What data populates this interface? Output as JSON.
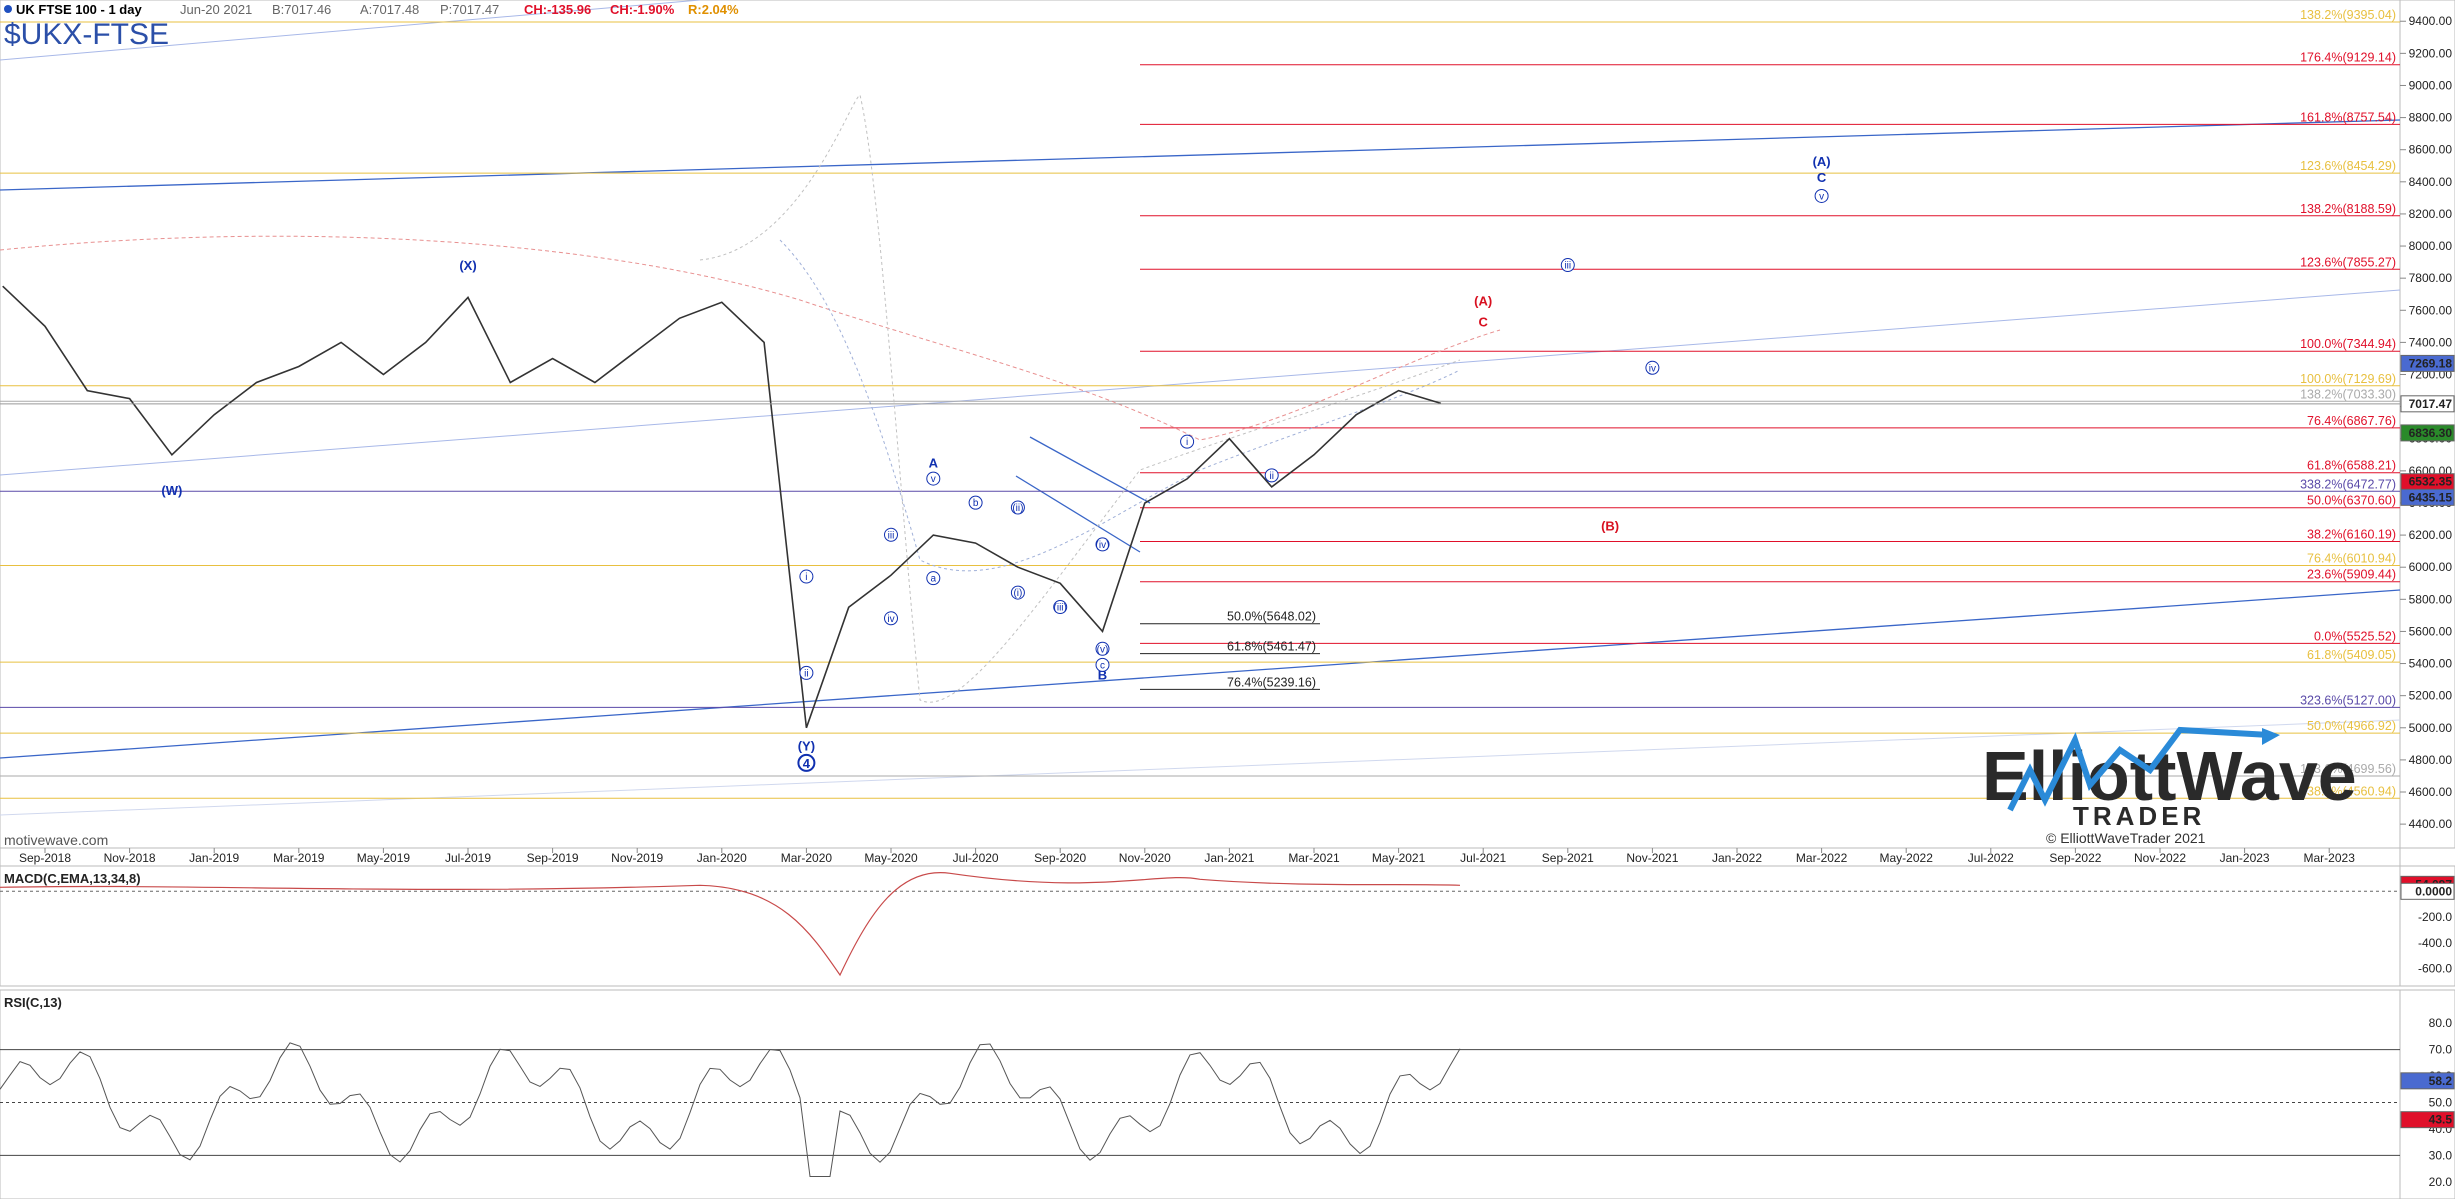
{
  "header": {
    "symbol_line": "UK FTSE 100 - 1 day",
    "date": "Jun-20 2021",
    "bid": "B:7017.46",
    "ask": "A:7017.48",
    "price": "P:7017.47",
    "change": "CH:-135.96",
    "change_pct": "CH:-1.90%",
    "range": "R:2.04%",
    "ticker": "$UKX-FTSE",
    "watermark": "motivewave.com",
    "copyright": "© ElliottWaveTrader 2021",
    "logo_word1": "ElliottWave",
    "logo_word2": "TRADER"
  },
  "colors": {
    "up_red": "#e0102a",
    "gold": "#e0b000",
    "blue_line": "#3a66c8",
    "wave_blue": "#1030b0",
    "wave_red": "#d81020",
    "price": "#333333",
    "macd_hist": "#8fb8de",
    "rsi_blue": "#6a8ad8"
  },
  "chart_data": {
    "type": "line",
    "main": {
      "y_ticks": [
        9400,
        9200,
        9000,
        8800,
        8600,
        8400,
        8200,
        8000,
        7800,
        7600,
        7400,
        7200,
        7000,
        6800,
        6600,
        6400,
        6200,
        6000,
        5800,
        5600,
        5400,
        5200,
        5000,
        4800,
        4600,
        4400
      ],
      "ylim": [
        4270,
        9470
      ],
      "x_ticks": [
        "Sep-2018",
        "Nov-2018",
        "Jan-2019",
        "Mar-2019",
        "May-2019",
        "Jul-2019",
        "Sep-2019",
        "Nov-2019",
        "Jan-2020",
        "Mar-2020",
        "May-2020",
        "Jul-2020",
        "Sep-2020",
        "Nov-2020",
        "Jan-2021",
        "Mar-2021",
        "May-2021",
        "Jul-2021",
        "Sep-2021",
        "Nov-2021",
        "Jan-2022",
        "Mar-2022",
        "May-2022",
        "Jul-2022",
        "Sep-2022",
        "Nov-2022",
        "Jan-2023",
        "Mar-2023"
      ],
      "price_series": {
        "x": [
          "Aug-2018",
          "Sep-2018",
          "Oct-2018",
          "Nov-2018",
          "Dec-2018",
          "Jan-2019",
          "Feb-2019",
          "Mar-2019",
          "Apr-2019",
          "May-2019",
          "Jun-2019",
          "Jul-2019",
          "Aug-2019",
          "Sep-2019",
          "Oct-2019",
          "Nov-2019",
          "Dec-2019",
          "Jan-2020",
          "Feb-2020",
          "Mar-2020",
          "Apr-2020",
          "May-2020",
          "Jun-2020",
          "Jul-2020",
          "Aug-2020",
          "Sep-2020",
          "Oct-2020",
          "Nov-2020",
          "Dec-2020",
          "Jan-2021",
          "Feb-2021",
          "Mar-2021",
          "Apr-2021",
          "May-2021",
          "Jun-2021"
        ],
        "y": [
          7750,
          7500,
          7100,
          7050,
          6700,
          6950,
          7150,
          7250,
          7400,
          7200,
          7400,
          7680,
          7150,
          7300,
          7150,
          7350,
          7550,
          7650,
          7400,
          5000,
          5750,
          5950,
          6200,
          6150,
          6000,
          5900,
          5600,
          6400,
          6550,
          6800,
          6500,
          6700,
          6950,
          7100,
          7020
        ]
      },
      "current_price": 7017.47,
      "right_labels": [
        {
          "text": "7269.18",
          "value": 7269.18,
          "bg": "#4a6ad0"
        },
        {
          "text": "7017.47",
          "value": 7017.47,
          "bg": "#ffffff"
        },
        {
          "text": "6836.30",
          "value": 6836.3,
          "bg": "#2a8a2a"
        },
        {
          "text": "6532.35",
          "value": 6532.35,
          "bg": "#e0102a"
        },
        {
          "text": "6435.15",
          "value": 6435.15,
          "bg": "#4a6ad0"
        }
      ],
      "fib_red": [
        {
          "label": "176.4%(9129.14)",
          "value": 9129.14
        },
        {
          "label": "161.8%(8757.54)",
          "value": 8757.54
        },
        {
          "label": "138.2%(8188.59)",
          "value": 8188.59
        },
        {
          "label": "123.6%(7855.27)",
          "value": 7855.27
        },
        {
          "label": "100.0%(7344.94)",
          "value": 7344.94
        },
        {
          "label": "76.4%(6867.76)",
          "value": 6867.76
        },
        {
          "label": "61.8%(6588.21)",
          "value": 6588.21
        },
        {
          "label": "50.0%(6370.60)",
          "value": 6370.6
        },
        {
          "label": "38.2%(6160.19)",
          "value": 6160.19
        },
        {
          "label": "23.6%(5909.44)",
          "value": 5909.44
        },
        {
          "label": "0.0%(5525.52)",
          "value": 5525.52
        }
      ],
      "fib_gold": [
        {
          "label": "138.2%(9395.04)",
          "value": 9395.04
        },
        {
          "label": "123.6%(8454.29)",
          "value": 8454.29
        },
        {
          "label": "100.0%(7129.69)",
          "value": 7129.69
        },
        {
          "label": "76.4%(6010.94)",
          "value": 6010.94
        },
        {
          "label": "61.8%(5409.05)",
          "value": 5409.05
        },
        {
          "label": "50.0%(4966.92)",
          "value": 4966.92
        },
        {
          "label": "38.2%(4560.94)",
          "value": 4560.94
        }
      ],
      "fib_gray": [
        {
          "label": "138.2%(7033.30)",
          "value": 7033.3
        },
        {
          "label": "123.6%(4699.56)",
          "value": 4699.56
        }
      ],
      "fib_purple": [
        {
          "label": "338.2%(6472.77)",
          "value": 6472.77
        },
        {
          "label": "323.6%(5127.00)",
          "value": 5127.0
        }
      ],
      "fib_black": [
        {
          "label": "50.0%(5648.02)",
          "value": 5648.02
        },
        {
          "label": "61.8%(5461.47)",
          "value": 5461.47
        },
        {
          "label": "76.4%(5239.16)",
          "value": 5239.16
        }
      ],
      "wave_labels_blue": [
        {
          "text": "(X)",
          "x": "Jul-2019",
          "y": 7850
        },
        {
          "text": "(W)",
          "x": "Dec-2018",
          "y": 6450
        },
        {
          "text": "(Y)",
          "x": "Mar-2020",
          "y": 4860
        },
        {
          "text": "4",
          "x": "Mar-2020",
          "y": 4750,
          "circled": true,
          "bold": true
        },
        {
          "text": "A",
          "x": "Jun-2020",
          "y": 6620
        },
        {
          "text": "B",
          "x": "Oct-2020",
          "y": 5300
        },
        {
          "text": "(A)",
          "x": "Mar-2022",
          "y": 8500
        },
        {
          "text": "C",
          "x": "Mar-2022",
          "y": 8400
        }
      ],
      "wave_labels_circled_blue": [
        {
          "text": "i",
          "x": "Mar-2020",
          "y": 5920
        },
        {
          "text": "ii",
          "x": "Mar-2020",
          "y": 5320
        },
        {
          "text": "iii",
          "x": "May-2020",
          "y": 6180
        },
        {
          "text": "iv",
          "x": "May-2020",
          "y": 5660
        },
        {
          "text": "v",
          "x": "Jun-2020",
          "y": 6530
        },
        {
          "text": "a",
          "x": "Jun-2020",
          "y": 5910
        },
        {
          "text": "b",
          "x": "Jul-2020",
          "y": 6380
        },
        {
          "text": "(ii)",
          "x": "Aug-2020",
          "y": 6350
        },
        {
          "text": "(i)",
          "x": "Aug-2020",
          "y": 5820
        },
        {
          "text": "(iii)",
          "x": "Sep-2020",
          "y": 5730
        },
        {
          "text": "(iv)",
          "x": "Oct-2020",
          "y": 6120
        },
        {
          "text": "(v)",
          "x": "Oct-2020",
          "y": 5470
        },
        {
          "text": "c",
          "x": "Oct-2020",
          "y": 5370
        },
        {
          "text": "i",
          "x": "Dec-2020",
          "y": 6760
        },
        {
          "text": "ii",
          "x": "Feb-2021",
          "y": 6550
        },
        {
          "text": "iii",
          "x": "Sep-2021",
          "y": 7860
        },
        {
          "text": "iv",
          "x": "Nov-2021",
          "y": 7220
        },
        {
          "text": "v",
          "x": "Mar-2022",
          "y": 8290
        }
      ],
      "wave_labels_red": [
        {
          "text": "(A)",
          "x": "Jul-2021",
          "y": 7630
        },
        {
          "text": "C",
          "x": "Jul-2021",
          "y": 7500
        },
        {
          "text": "(B)",
          "x": "Oct-2021",
          "y": 6230
        }
      ]
    },
    "macd": {
      "label": "MACD(C,EMA,13,34,8)",
      "y_ticks": [
        0.0,
        -200.0,
        -400.0,
        -600.0
      ],
      "ylim": [
        -720,
        150
      ],
      "value_labels": [
        {
          "text": "54.097",
          "value": 54.097,
          "bg": "#e0102a"
        },
        {
          "text": "0.0000",
          "value": 0.0,
          "bg": "#ffffff"
        }
      ]
    },
    "rsi": {
      "label": "RSI(C,13)",
      "y_ticks": [
        80.0,
        70.0,
        60.0,
        50.0,
        40.0,
        30.0,
        20.0
      ],
      "ylim": [
        15,
        85
      ],
      "levels": [
        70,
        50,
        30
      ],
      "value_labels": [
        {
          "text": "58.2",
          "value": 58.2,
          "bg": "#4a6ad0"
        },
        {
          "text": "43.5",
          "value": 43.5,
          "bg": "#e0102a"
        }
      ]
    }
  }
}
